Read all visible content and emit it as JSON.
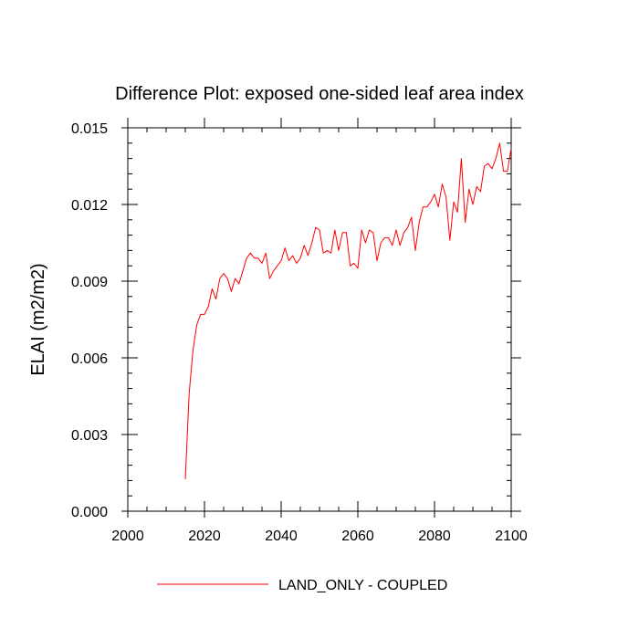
{
  "chart_data": {
    "type": "line",
    "title": "Difference Plot: exposed one-sided leaf area index",
    "xlabel": "",
    "ylabel": "ELAI  (m2/m2)",
    "xlim": [
      2000,
      2100
    ],
    "ylim": [
      0.0,
      0.015
    ],
    "xticks": [
      2000,
      2020,
      2040,
      2060,
      2080,
      2100
    ],
    "xtick_labels": [
      "2000",
      "2020",
      "2040",
      "2060",
      "2080",
      "2100"
    ],
    "yticks": [
      0.0,
      0.003,
      0.006,
      0.009,
      0.012,
      0.015
    ],
    "ytick_labels": [
      "0.000",
      "0.003",
      "0.006",
      "0.009",
      "0.012",
      "0.015"
    ],
    "grid": false,
    "legend_position": "bottom-center",
    "series": [
      {
        "name": "LAND_ONLY - COUPLED",
        "color": "#ff0000",
        "x": [
          2015,
          2016,
          2017,
          2018,
          2019,
          2020,
          2021,
          2022,
          2023,
          2024,
          2025,
          2026,
          2027,
          2028,
          2029,
          2030,
          2031,
          2032,
          2033,
          2034,
          2035,
          2036,
          2037,
          2038,
          2039,
          2040,
          2041,
          2042,
          2043,
          2044,
          2045,
          2046,
          2047,
          2048,
          2049,
          2050,
          2051,
          2052,
          2053,
          2054,
          2055,
          2056,
          2057,
          2058,
          2059,
          2060,
          2061,
          2062,
          2063,
          2064,
          2065,
          2066,
          2067,
          2068,
          2069,
          2070,
          2071,
          2072,
          2073,
          2074,
          2075,
          2076,
          2077,
          2078,
          2079,
          2080,
          2081,
          2082,
          2083,
          2084,
          2085,
          2086,
          2087,
          2088,
          2089,
          2090,
          2091,
          2092,
          2093,
          2094,
          2095,
          2096,
          2097,
          2098,
          2099,
          2100
        ],
        "values": [
          0.00125,
          0.0046,
          0.0063,
          0.0073,
          0.0077,
          0.0077,
          0.008,
          0.0087,
          0.0083,
          0.0091,
          0.0093,
          0.0091,
          0.0086,
          0.0091,
          0.0089,
          0.0094,
          0.0099,
          0.0101,
          0.0099,
          0.0099,
          0.0097,
          0.0101,
          0.0091,
          0.0094,
          0.0096,
          0.0098,
          0.0103,
          0.0098,
          0.01,
          0.0097,
          0.0099,
          0.0104,
          0.01,
          0.0105,
          0.0111,
          0.011,
          0.0101,
          0.0102,
          0.0101,
          0.011,
          0.0102,
          0.0109,
          0.0109,
          0.0096,
          0.0097,
          0.0095,
          0.011,
          0.0105,
          0.011,
          0.0109,
          0.0098,
          0.0105,
          0.0107,
          0.0107,
          0.0104,
          0.011,
          0.0104,
          0.0109,
          0.0111,
          0.0115,
          0.0102,
          0.0113,
          0.0119,
          0.0119,
          0.0121,
          0.0124,
          0.0119,
          0.0128,
          0.0123,
          0.0106,
          0.0121,
          0.0117,
          0.0138,
          0.0113,
          0.0126,
          0.012,
          0.0127,
          0.0125,
          0.0135,
          0.0136,
          0.0134,
          0.0138,
          0.0144,
          0.0133,
          0.0133,
          0.0142
        ]
      }
    ]
  }
}
